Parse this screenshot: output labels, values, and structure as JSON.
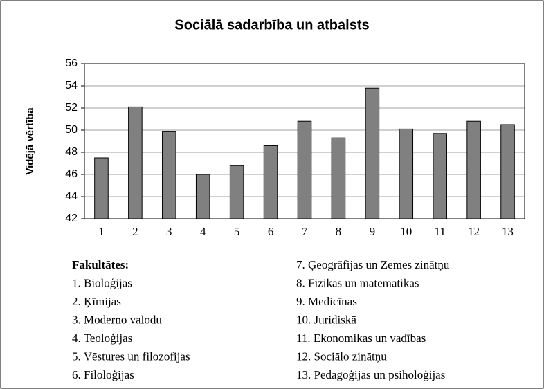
{
  "chart_data": {
    "type": "bar",
    "title": "Sociālā sadarbība un atbalsts",
    "y_label": "Vidējā vērtība",
    "categories": [
      "1",
      "2",
      "3",
      "4",
      "5",
      "6",
      "7",
      "8",
      "9",
      "10",
      "11",
      "12",
      "13"
    ],
    "values": [
      47.5,
      52.1,
      49.9,
      46.0,
      46.8,
      48.6,
      50.8,
      49.3,
      53.8,
      50.1,
      49.7,
      50.8,
      50.5
    ],
    "color": "#808080",
    "ylim": [
      42,
      56
    ],
    "yticks": [
      42,
      44,
      46,
      48,
      50,
      52,
      54,
      56
    ],
    "grid": true,
    "legend_title": "Fakultātes:",
    "faculty_list": [
      "1. Bioloģijas",
      "2. Ķīmijas",
      "3. Moderno valodu",
      "4. Teoloģijas",
      "5. Vēstures un filozofijas",
      "6. Filoloģijas",
      "7. Ģeogrāfijas un Zemes zinātņu",
      "8. Fizikas un matemātikas",
      "9. Medicīnas",
      "10. Juridiskā",
      "11. Ekonomikas un vadības",
      "12. Sociālo zinātņu",
      "13. Pedagoģijas un psiholoģijas"
    ]
  }
}
